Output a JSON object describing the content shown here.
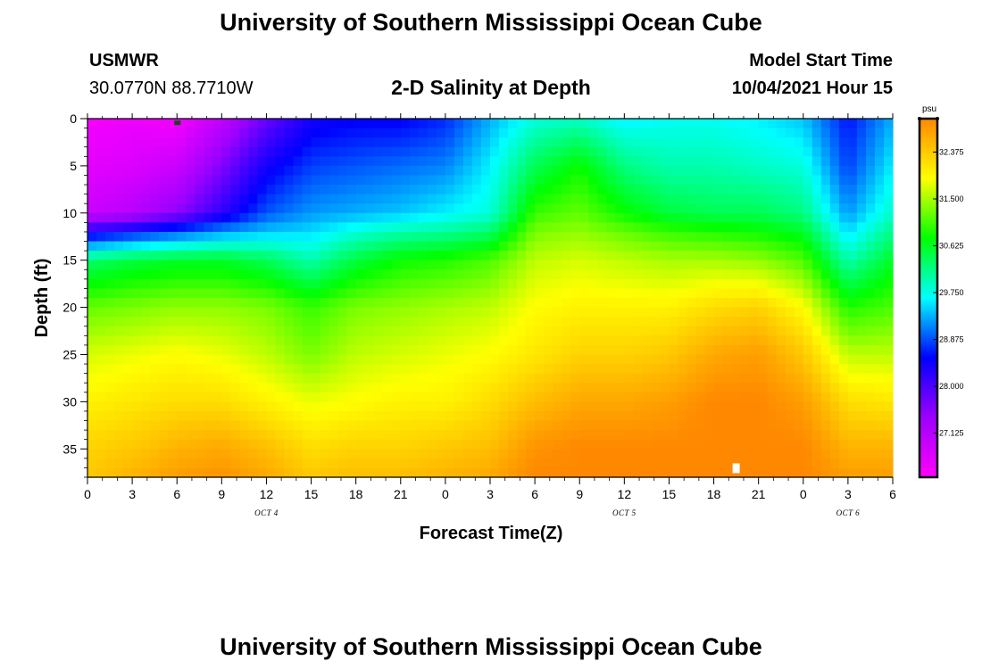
{
  "header": {
    "title": "University of Southern Mississippi Ocean Cube",
    "station": "USMWR",
    "coords": "30.0770N  88.7710W",
    "plot_title": "2-D Salinity at Depth",
    "start_label": "Model Start Time",
    "start_value": "10/04/2021 Hour 15"
  },
  "footer": {
    "title": "University of Southern Mississippi Ocean Cube"
  },
  "chart_data": {
    "type": "heatmap",
    "title": "2-D Salinity at Depth",
    "xlabel": "Forecast Time(Z)",
    "ylabel": "Depth (ft)",
    "x_ticks": [
      "0",
      "3",
      "6",
      "9",
      "12",
      "15",
      "18",
      "21",
      "0",
      "3",
      "6",
      "9",
      "12",
      "15",
      "18",
      "21",
      "0",
      "3",
      "6"
    ],
    "x_range_hours": [
      0,
      54
    ],
    "date_labels": [
      {
        "text": "OCT 4",
        "hour": 12
      },
      {
        "text": "OCT 5",
        "hour": 36
      },
      {
        "text": "OCT 6",
        "hour": 51
      }
    ],
    "y_ticks": [
      "0",
      "5",
      "10",
      "15",
      "20",
      "25",
      "30",
      "35"
    ],
    "y_tick_values": [
      0,
      5,
      10,
      15,
      20,
      25,
      30,
      35
    ],
    "ylim": [
      0,
      38
    ],
    "colorbar": {
      "unit": "psu",
      "tick_labels": [
        "32.375",
        "31.500",
        "30.625",
        "29.750",
        "28.875",
        "28.000",
        "27.125"
      ],
      "tick_values": [
        32.375,
        31.5,
        30.625,
        29.75,
        28.875,
        28.0,
        27.125
      ],
      "range": [
        26.3,
        33.0
      ],
      "colors": [
        "#ff00ff",
        "#9d00ff",
        "#0000ff",
        "#00ffff",
        "#00ff00",
        "#ffff00",
        "#ff8800"
      ]
    },
    "salinity_grid": {
      "hours": [
        0,
        3,
        6,
        9,
        12,
        15,
        18,
        21,
        24,
        27,
        30,
        33,
        36,
        39,
        42,
        45,
        48,
        51,
        54
      ],
      "depths": [
        0,
        5,
        10,
        12,
        15,
        20,
        25,
        30,
        35,
        38
      ],
      "values": [
        [
          26.4,
          26.6,
          26.9,
          28.3,
          30.3,
          31.2,
          31.7,
          32.0,
          32.3,
          32.4
        ],
        [
          26.5,
          26.7,
          27.1,
          28.6,
          30.5,
          31.3,
          31.8,
          32.1,
          32.4,
          32.6
        ],
        [
          26.4,
          26.9,
          27.5,
          28.9,
          30.6,
          31.4,
          31.9,
          32.2,
          32.6,
          32.8
        ],
        [
          27.0,
          27.6,
          28.2,
          29.2,
          30.6,
          31.4,
          31.8,
          32.2,
          32.7,
          32.9
        ],
        [
          27.8,
          28.4,
          28.9,
          29.4,
          30.4,
          31.3,
          31.6,
          32.0,
          32.5,
          32.7
        ],
        [
          28.4,
          28.8,
          29.2,
          29.5,
          30.0,
          31.0,
          31.3,
          31.8,
          32.2,
          32.4
        ],
        [
          28.5,
          28.9,
          29.3,
          29.8,
          30.5,
          31.3,
          31.6,
          31.9,
          32.3,
          32.5
        ],
        [
          28.5,
          29.0,
          29.4,
          30.0,
          30.8,
          31.4,
          31.7,
          32.0,
          32.3,
          32.5
        ],
        [
          28.7,
          29.1,
          29.6,
          30.1,
          30.9,
          31.5,
          31.8,
          32.0,
          32.4,
          32.6
        ],
        [
          29.3,
          29.6,
          29.8,
          30.3,
          31.1,
          31.6,
          31.9,
          32.2,
          32.5,
          32.7
        ],
        [
          29.8,
          30.4,
          31.0,
          31.3,
          31.6,
          31.9,
          32.1,
          32.5,
          32.9,
          33.0
        ],
        [
          29.9,
          30.8,
          31.2,
          31.4,
          31.7,
          32.0,
          32.3,
          32.7,
          33.0,
          33.0
        ],
        [
          29.6,
          30.2,
          30.8,
          31.2,
          31.6,
          32.0,
          32.3,
          32.7,
          33.0,
          33.0
        ],
        [
          29.7,
          30.0,
          30.5,
          31.0,
          31.5,
          32.0,
          32.4,
          32.8,
          33.0,
          33.0
        ],
        [
          29.7,
          30.0,
          30.4,
          30.9,
          31.5,
          32.2,
          32.7,
          33.0,
          33.0,
          33.0
        ],
        [
          29.6,
          29.9,
          30.4,
          30.8,
          31.4,
          32.3,
          32.8,
          33.0,
          33.0,
          33.0
        ],
        [
          29.4,
          29.8,
          30.2,
          30.6,
          31.1,
          31.9,
          32.4,
          32.8,
          33.0,
          33.0
        ],
        [
          28.6,
          28.8,
          29.2,
          29.5,
          30.0,
          30.9,
          31.6,
          32.2,
          32.6,
          32.8
        ],
        [
          29.3,
          29.6,
          29.9,
          30.2,
          30.6,
          31.1,
          31.6,
          32.1,
          32.6,
          32.8
        ]
      ]
    },
    "markers": [
      {
        "type": "dark-square",
        "hour": 6,
        "depth": 0.3
      },
      {
        "type": "white-rect",
        "hour": 43.5,
        "depth": 37
      }
    ]
  }
}
